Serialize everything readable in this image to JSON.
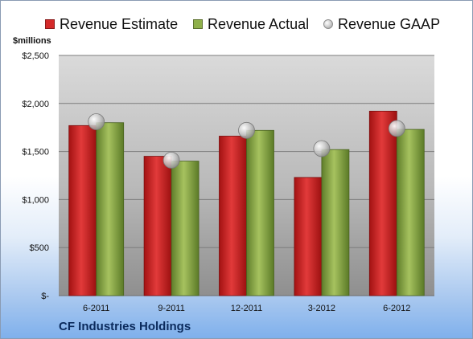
{
  "chart_data": {
    "type": "bar",
    "categories": [
      "6-2011",
      "9-2011",
      "12-2011",
      "3-2012",
      "6-2012"
    ],
    "series": [
      {
        "name": "Revenue Estimate",
        "kind": "bar",
        "color": "#d42a2a",
        "values": [
          1770,
          1450,
          1660,
          1230,
          1920
        ]
      },
      {
        "name": "Revenue Actual",
        "kind": "bar",
        "color": "#8fb04a",
        "values": [
          1800,
          1400,
          1720,
          1520,
          1730
        ]
      },
      {
        "name": "Revenue GAAP",
        "kind": "marker",
        "color": "#bdbdbd",
        "values": [
          1810,
          1410,
          1720,
          1530,
          1740
        ]
      }
    ],
    "ylabel": "$millions",
    "ylim": [
      0,
      2500
    ],
    "yticks": [
      0,
      500,
      1000,
      1500,
      2000,
      2500
    ],
    "ytick_labels": [
      "$-",
      "$500",
      "$1,000",
      "$1,500",
      "$2,000",
      "$2,500"
    ],
    "company": "CF Industries Holdings",
    "grid": true,
    "legend_position": "top"
  }
}
